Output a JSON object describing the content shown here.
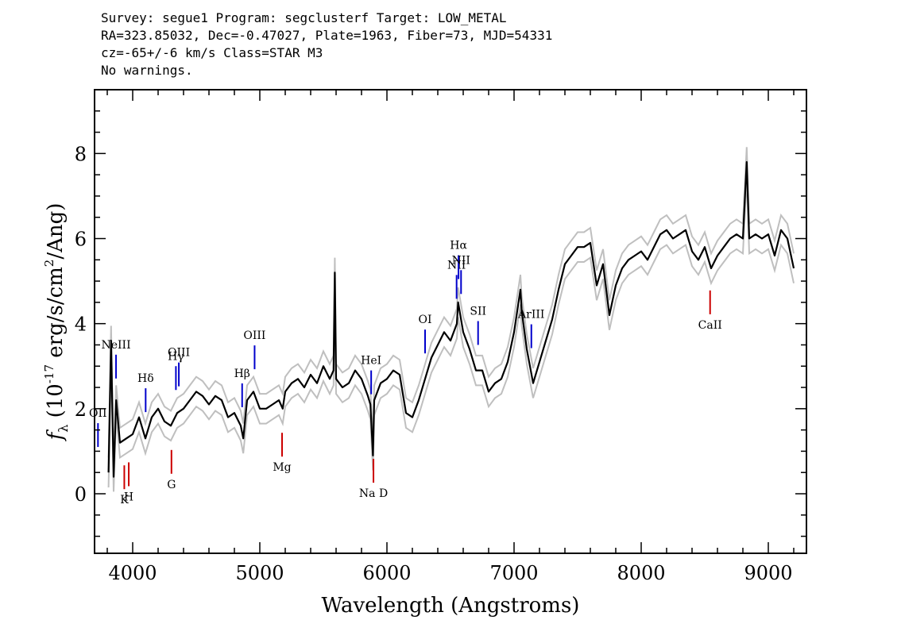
{
  "header": {
    "line1": "Survey: segue1 Program: segclusterf Target: LOW_METAL",
    "line2": "RA=323.85032, Dec=-0.47027, Plate=1963, Fiber=73, MJD=54331",
    "line3": "cz=-65+/-6 km/s Class=STAR M3",
    "line4": "No warnings."
  },
  "chart_data": {
    "type": "line",
    "title": "",
    "xlabel": "Wavelength (Angstroms)",
    "ylabel": "f_λ (10^-17 erg/s/cm^2/Ang)",
    "xlim": [
      3700,
      9300
    ],
    "ylim": [
      -1.4,
      9.5
    ],
    "xticks": [
      4000,
      5000,
      6000,
      7000,
      8000,
      9000
    ],
    "yticks": [
      0,
      2,
      4,
      6,
      8
    ],
    "grid": false,
    "colors": {
      "flux": "#000000",
      "error": "#bfbfbf",
      "emission": "#0000cc",
      "absorption": "#cc0000"
    },
    "series": [
      {
        "role": "flux",
        "x": [
          3810,
          3830,
          3850,
          3870,
          3900,
          3950,
          4000,
          4050,
          4100,
          4150,
          4200,
          4250,
          4300,
          4350,
          4400,
          4450,
          4500,
          4550,
          4600,
          4650,
          4700,
          4750,
          4800,
          4850,
          4870,
          4900,
          4950,
          5000,
          5050,
          5100,
          5150,
          5180,
          5200,
          5250,
          5300,
          5350,
          5400,
          5450,
          5500,
          5550,
          5580,
          5590,
          5600,
          5650,
          5700,
          5750,
          5800,
          5850,
          5870,
          5890,
          5900,
          5950,
          6000,
          6050,
          6100,
          6150,
          6200,
          6250,
          6300,
          6350,
          6400,
          6450,
          6500,
          6550,
          6560,
          6600,
          6650,
          6700,
          6750,
          6800,
          6850,
          6900,
          6950,
          7000,
          7050,
          7060,
          7100,
          7150,
          7200,
          7250,
          7300,
          7350,
          7400,
          7450,
          7500,
          7550,
          7600,
          7650,
          7700,
          7750,
          7800,
          7850,
          7900,
          7950,
          8000,
          8050,
          8100,
          8150,
          8200,
          8250,
          8300,
          8350,
          8400,
          8450,
          8500,
          8550,
          8600,
          8650,
          8700,
          8750,
          8800,
          8830,
          8850,
          8900,
          8950,
          9000,
          9050,
          9100,
          9150,
          9200
        ],
        "y": [
          0.5,
          3.6,
          0.4,
          2.2,
          1.2,
          1.3,
          1.4,
          1.8,
          1.3,
          1.8,
          2.0,
          1.7,
          1.6,
          1.9,
          2.0,
          2.2,
          2.4,
          2.3,
          2.1,
          2.3,
          2.2,
          1.8,
          1.9,
          1.6,
          1.3,
          2.2,
          2.4,
          2.0,
          2.0,
          2.1,
          2.2,
          2.0,
          2.4,
          2.6,
          2.7,
          2.5,
          2.8,
          2.6,
          3.0,
          2.7,
          2.9,
          5.2,
          2.7,
          2.5,
          2.6,
          2.9,
          2.7,
          2.3,
          2.1,
          0.9,
          2.2,
          2.6,
          2.7,
          2.9,
          2.8,
          1.9,
          1.8,
          2.2,
          2.7,
          3.2,
          3.5,
          3.8,
          3.6,
          4.0,
          4.5,
          3.8,
          3.4,
          2.9,
          2.9,
          2.4,
          2.6,
          2.7,
          3.1,
          3.8,
          4.8,
          4.3,
          3.4,
          2.6,
          3.1,
          3.6,
          4.1,
          4.8,
          5.4,
          5.6,
          5.8,
          5.8,
          5.9,
          4.9,
          5.4,
          4.2,
          4.9,
          5.3,
          5.5,
          5.6,
          5.7,
          5.5,
          5.8,
          6.1,
          6.2,
          6.0,
          6.1,
          6.2,
          5.7,
          5.5,
          5.8,
          5.3,
          5.6,
          5.8,
          6.0,
          6.1,
          6.0,
          7.8,
          6.0,
          6.1,
          6.0,
          6.1,
          5.6,
          6.2,
          6.0,
          5.3
        ]
      }
    ],
    "line_labels": [
      {
        "label": "OII",
        "x": 3727,
        "kind": "emission"
      },
      {
        "label": "NeIII",
        "x": 3869,
        "kind": "emission"
      },
      {
        "label": "Hδ",
        "x": 4102,
        "kind": "emission"
      },
      {
        "label": "Hγ",
        "x": 4340,
        "kind": "emission"
      },
      {
        "label": "OIII",
        "x": 4363,
        "kind": "emission"
      },
      {
        "label": "Hβ",
        "x": 4861,
        "kind": "emission"
      },
      {
        "label": "OIII",
        "x": 4959,
        "kind": "emission"
      },
      {
        "label": "HeI",
        "x": 5876,
        "kind": "emission"
      },
      {
        "label": "OI",
        "x": 6300,
        "kind": "emission"
      },
      {
        "label": "NII",
        "x": 6548,
        "kind": "emission"
      },
      {
        "label": "Hα",
        "x": 6563,
        "kind": "emission"
      },
      {
        "label": "NII",
        "x": 6583,
        "kind": "emission"
      },
      {
        "label": "SII",
        "x": 6717,
        "kind": "emission"
      },
      {
        "label": "ArIII",
        "x": 7136,
        "kind": "emission"
      },
      {
        "label": "K",
        "x": 3934,
        "kind": "absorption"
      },
      {
        "label": "H",
        "x": 3969,
        "kind": "absorption"
      },
      {
        "label": "G",
        "x": 4305,
        "kind": "absorption"
      },
      {
        "label": "Mg",
        "x": 5175,
        "kind": "absorption"
      },
      {
        "label": "Na D",
        "x": 5894,
        "kind": "absorption"
      },
      {
        "label": "CaII",
        "x": 8542,
        "kind": "absorption"
      }
    ]
  }
}
